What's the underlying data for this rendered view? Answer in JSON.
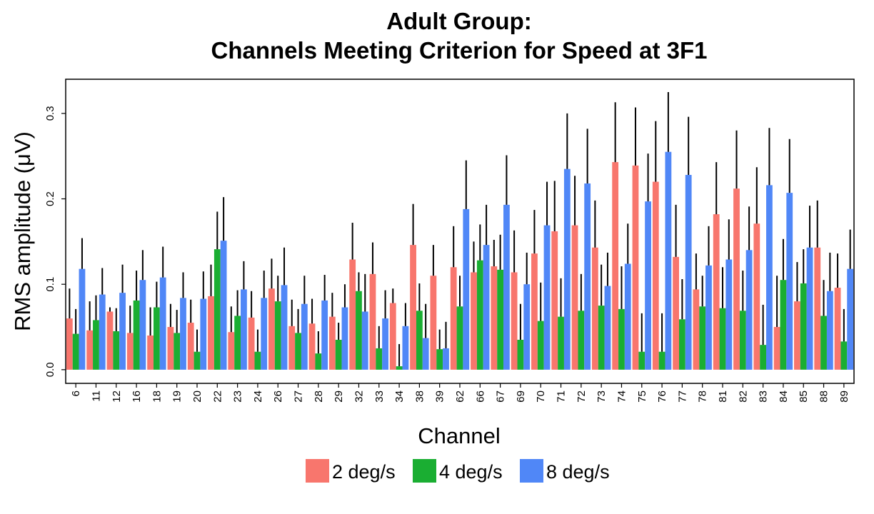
{
  "chart_data": {
    "type": "bar",
    "title_line1": "Adult Group:",
    "title_line2": "Channels Meeting Criterion for Speed at 3F1",
    "xlabel": "Channel",
    "ylabel": "RMS amplitude (μV)",
    "ylim": [
      -0.016,
      0.34
    ],
    "yticks": [
      "0.0",
      "0.1",
      "0.2",
      "0.3"
    ],
    "ytick_values": [
      0.0,
      0.1,
      0.2,
      0.3
    ],
    "grid": false,
    "legend_position": "bottom",
    "categories": [
      "6",
      "11",
      "12",
      "16",
      "18",
      "19",
      "20",
      "22",
      "23",
      "24",
      "26",
      "27",
      "28",
      "29",
      "32",
      "33",
      "34",
      "38",
      "39",
      "62",
      "66",
      "67",
      "69",
      "70",
      "71",
      "72",
      "73",
      "74",
      "75",
      "76",
      "77",
      "78",
      "81",
      "82",
      "83",
      "84",
      "85",
      "88",
      "89"
    ],
    "series": [
      {
        "name": "2 deg/s",
        "color": "#F8766D",
        "values": [
          0.06,
          0.046,
          0.068,
          0.043,
          0.04,
          0.05,
          0.055,
          0.086,
          0.044,
          0.061,
          0.095,
          0.051,
          0.054,
          0.062,
          0.129,
          0.112,
          0.078,
          0.146,
          0.11,
          0.12,
          0.114,
          0.121,
          0.114,
          0.136,
          0.162,
          0.169,
          0.143,
          0.243,
          0.239,
          0.22,
          0.132,
          0.094,
          0.182,
          0.212,
          0.171,
          0.05,
          0.08,
          0.143,
          0.096
        ],
        "errors": [
          0.095,
          0.08,
          0.073,
          0.075,
          0.073,
          0.077,
          0.082,
          0.123,
          0.074,
          0.092,
          0.13,
          0.082,
          0.083,
          0.09,
          0.172,
          0.149,
          0.095,
          0.194,
          0.146,
          0.168,
          0.15,
          0.152,
          0.163,
          0.187,
          0.221,
          0.227,
          0.198,
          0.313,
          0.307,
          0.291,
          0.193,
          0.136,
          0.243,
          0.28,
          0.237,
          0.11,
          0.126,
          0.198,
          0.136
        ]
      },
      {
        "name": "4 deg/s",
        "color": "#1AAE32",
        "values": [
          0.042,
          0.058,
          0.045,
          0.081,
          0.073,
          0.043,
          0.021,
          0.141,
          0.063,
          0.021,
          0.08,
          0.043,
          0.019,
          0.035,
          0.092,
          0.025,
          0.004,
          0.069,
          0.024,
          0.074,
          0.128,
          0.117,
          0.035,
          0.057,
          0.062,
          0.069,
          0.075,
          0.071,
          0.021,
          0.021,
          0.059,
          0.074,
          0.072,
          0.069,
          0.029,
          0.105,
          0.101,
          0.063,
          0.033
        ],
        "errors": [
          0.071,
          0.087,
          0.072,
          0.116,
          0.103,
          0.07,
          0.047,
          0.185,
          0.093,
          0.047,
          0.11,
          0.071,
          0.045,
          0.055,
          0.114,
          0.051,
          0.03,
          0.101,
          0.047,
          0.11,
          0.17,
          0.158,
          0.077,
          0.102,
          0.107,
          0.112,
          0.123,
          0.121,
          0.066,
          0.066,
          0.106,
          0.11,
          0.12,
          0.116,
          0.076,
          0.153,
          0.141,
          0.105,
          0.071
        ]
      },
      {
        "name": "8 deg/s",
        "color": "#5087F7",
        "values": [
          0.118,
          0.088,
          0.09,
          0.105,
          0.108,
          0.084,
          0.083,
          0.151,
          0.094,
          0.084,
          0.099,
          0.077,
          0.081,
          0.073,
          0.068,
          0.06,
          0.051,
          0.037,
          0.025,
          0.188,
          0.146,
          0.193,
          0.1,
          0.169,
          0.235,
          0.218,
          0.098,
          0.124,
          0.197,
          0.255,
          0.228,
          0.122,
          0.129,
          0.14,
          0.216,
          0.207,
          0.143,
          0.092,
          0.118
        ],
        "errors": [
          0.154,
          0.119,
          0.123,
          0.14,
          0.144,
          0.114,
          0.115,
          0.202,
          0.127,
          0.116,
          0.143,
          0.11,
          0.111,
          0.1,
          0.112,
          0.093,
          0.078,
          0.077,
          0.056,
          0.245,
          0.193,
          0.251,
          0.137,
          0.22,
          0.3,
          0.282,
          0.137,
          0.171,
          0.253,
          0.325,
          0.296,
          0.168,
          0.176,
          0.191,
          0.283,
          0.27,
          0.192,
          0.137,
          0.164
        ]
      }
    ]
  }
}
